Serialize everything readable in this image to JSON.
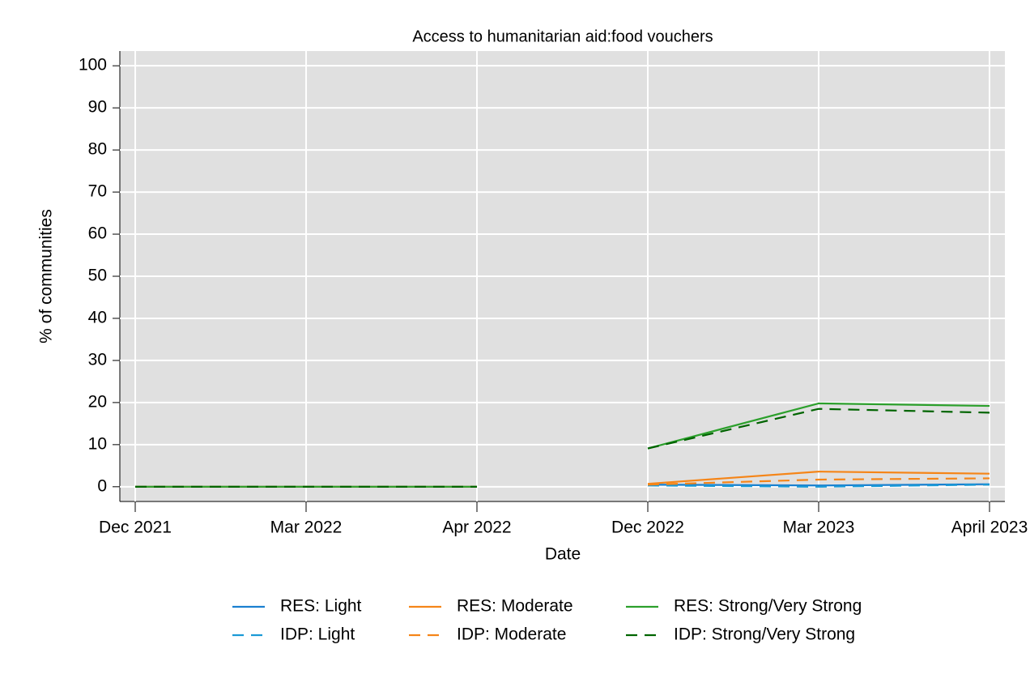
{
  "chart_data": {
    "type": "line",
    "title": "Access to humanitarian aid:food vouchers",
    "x_label": "Date",
    "y_label": "% of communities",
    "categories": [
      "Dec 2021",
      "Mar 2022",
      "Apr 2022",
      "Dec 2022",
      "Mar 2023",
      "April 2023"
    ],
    "breaks": [
      3
    ],
    "series": [
      {
        "name": "RES: Light",
        "color": "#1a80d0",
        "style": "solid",
        "values": [
          0,
          0,
          0,
          0.5,
          0.3,
          0.6
        ]
      },
      {
        "name": "IDP: Light",
        "color": "#1a9ad6",
        "style": "dashed",
        "values": [
          0,
          0,
          0,
          0.3,
          0,
          0.5
        ]
      },
      {
        "name": "RES: Moderate",
        "color": "#f58518",
        "style": "solid",
        "values": [
          0,
          0,
          0,
          0.7,
          3.6,
          3.1
        ]
      },
      {
        "name": "IDP: Moderate",
        "color": "#f58518",
        "style": "dashed",
        "values": [
          0,
          0,
          0,
          0.5,
          1.7,
          2.0
        ]
      },
      {
        "name": "RES: Strong/Very Strong",
        "color": "#2ca02c",
        "style": "solid",
        "values": [
          0,
          0,
          0,
          9.1,
          19.8,
          19.2
        ]
      },
      {
        "name": "IDP: Strong/Very Strong",
        "color": "#006400",
        "style": "dashed",
        "values": [
          0,
          0,
          0,
          9.1,
          18.5,
          17.6
        ]
      }
    ],
    "ylim": [
      -3.5,
      103.5
    ],
    "yticks": [
      0,
      10,
      20,
      30,
      40,
      50,
      60,
      70,
      80,
      90,
      100
    ],
    "grid": true
  }
}
